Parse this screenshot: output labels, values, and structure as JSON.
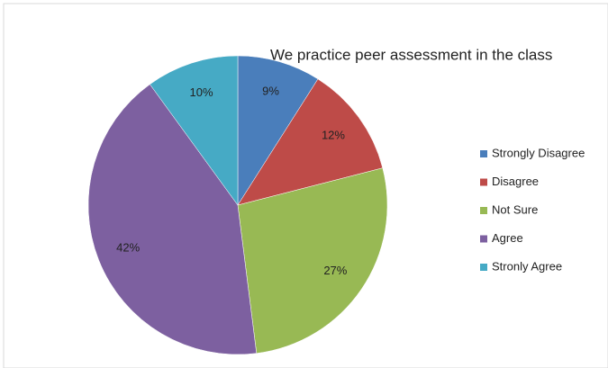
{
  "chart_data": {
    "type": "pie",
    "title": "We practice peer assessment in the class",
    "categories": [
      "Strongly Disagree",
      "Disagree",
      "Not Sure",
      "Agree",
      "Stronly Agree"
    ],
    "values": [
      9,
      12,
      27,
      42,
      10
    ],
    "value_labels": [
      "9%",
      "12%",
      "27%",
      "42%",
      "10%"
    ],
    "colors": [
      "#4a7ebb",
      "#be4b48",
      "#98b954",
      "#7d60a0",
      "#46aac5"
    ],
    "legend": "right"
  }
}
